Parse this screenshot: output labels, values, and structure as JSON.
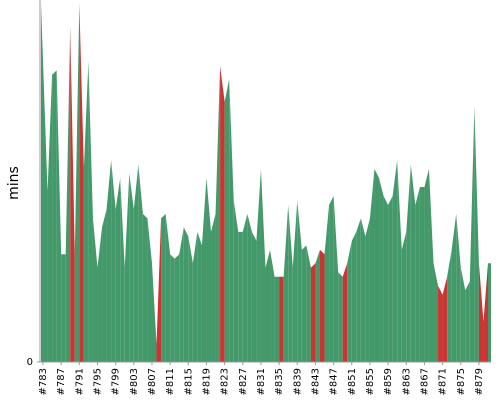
{
  "chart_data": {
    "type": "area",
    "y_label": "mins",
    "categories": [
      "#783",
      null,
      null,
      null,
      "#787",
      null,
      null,
      null,
      "#791",
      null,
      null,
      null,
      "#795",
      null,
      null,
      null,
      "#799",
      null,
      null,
      null,
      "#803",
      null,
      null,
      null,
      "#807",
      null,
      null,
      null,
      "#811",
      null,
      null,
      null,
      "#815",
      null,
      null,
      null,
      "#819",
      null,
      null,
      null,
      "#823",
      null,
      null,
      null,
      "#827",
      null,
      null,
      null,
      "#831",
      null,
      null,
      null,
      "#835",
      null,
      null,
      null,
      "#839",
      null,
      null,
      null,
      "#843",
      null,
      null,
      null,
      "#847",
      null,
      null,
      null,
      "#851",
      null,
      null,
      null,
      "#855",
      null,
      null,
      null,
      "#859",
      null,
      null,
      null,
      "#863",
      null,
      null,
      null,
      "#867",
      null,
      null,
      null,
      "#871",
      null,
      null,
      null,
      "#875",
      null,
      null,
      null,
      "#879",
      null,
      null
    ],
    "values": [
      80,
      38,
      64,
      65,
      24,
      24,
      75,
      24,
      80,
      43,
      67,
      32,
      21,
      30,
      34,
      45,
      34,
      41,
      21,
      42,
      34,
      44,
      33,
      32,
      22,
      4,
      32,
      33,
      24,
      23,
      24,
      30,
      28,
      22,
      29,
      26,
      41,
      29,
      33,
      66,
      58,
      63,
      36,
      29,
      29,
      33,
      29,
      27,
      43,
      21,
      25,
      19,
      19,
      19,
      35,
      21,
      36,
      25,
      26,
      21,
      22,
      25,
      24,
      35,
      37,
      20,
      19,
      22,
      27,
      29,
      32,
      28,
      32,
      43,
      41,
      37,
      35,
      37,
      45,
      25,
      29,
      44,
      35,
      39,
      39,
      43,
      22,
      17,
      15,
      19,
      25,
      33,
      21,
      16,
      18,
      57,
      22,
      9,
      22
    ],
    "colors": [
      "#44996a",
      "#44996a",
      "#44996a",
      "#44996a",
      "#44996a",
      "#44996a",
      "#cc3333",
      "#44996a",
      "#cc3333",
      "#44996a",
      "#44996a",
      "#44996a",
      "#44996a",
      "#44996a",
      "#44996a",
      "#44996a",
      "#44996a",
      "#44996a",
      "#44996a",
      "#44996a",
      "#44996a",
      "#44996a",
      "#44996a",
      "#44996a",
      "#44996a",
      "#cc3333",
      "#44996a",
      "#44996a",
      "#44996a",
      "#44996a",
      "#44996a",
      "#44996a",
      "#44996a",
      "#44996a",
      "#44996a",
      "#44996a",
      "#44996a",
      "#44996a",
      "#44996a",
      "#cc3333",
      "#44996a",
      "#44996a",
      "#44996a",
      "#44996a",
      "#44996a",
      "#44996a",
      "#44996a",
      "#44996a",
      "#44996a",
      "#44996a",
      "#44996a",
      "#44996a",
      "#cc3333",
      "#44996a",
      "#44996a",
      "#44996a",
      "#44996a",
      "#44996a",
      "#44996a",
      "#cc3333",
      "#44996a",
      "#cc3333",
      "#44996a",
      "#44996a",
      "#44996a",
      "#44996a",
      "#cc3333",
      "#44996a",
      "#44996a",
      "#44996a",
      "#44996a",
      "#44996a",
      "#44996a",
      "#44996a",
      "#44996a",
      "#44996a",
      "#44996a",
      "#44996a",
      "#44996a",
      "#44996a",
      "#44996a",
      "#44996a",
      "#44996a",
      "#44996a",
      "#44996a",
      "#44996a",
      "#44996a",
      "#cc3333",
      "#cc3333",
      "#44996a",
      "#44996a",
      "#44996a",
      "#44996a",
      "#44996a",
      "#44996a",
      "#44996a",
      "#cc3333",
      "#cc3333",
      "#44996a"
    ],
    "ylim": [
      0,
      80
    ],
    "yticks": [
      0
    ]
  }
}
